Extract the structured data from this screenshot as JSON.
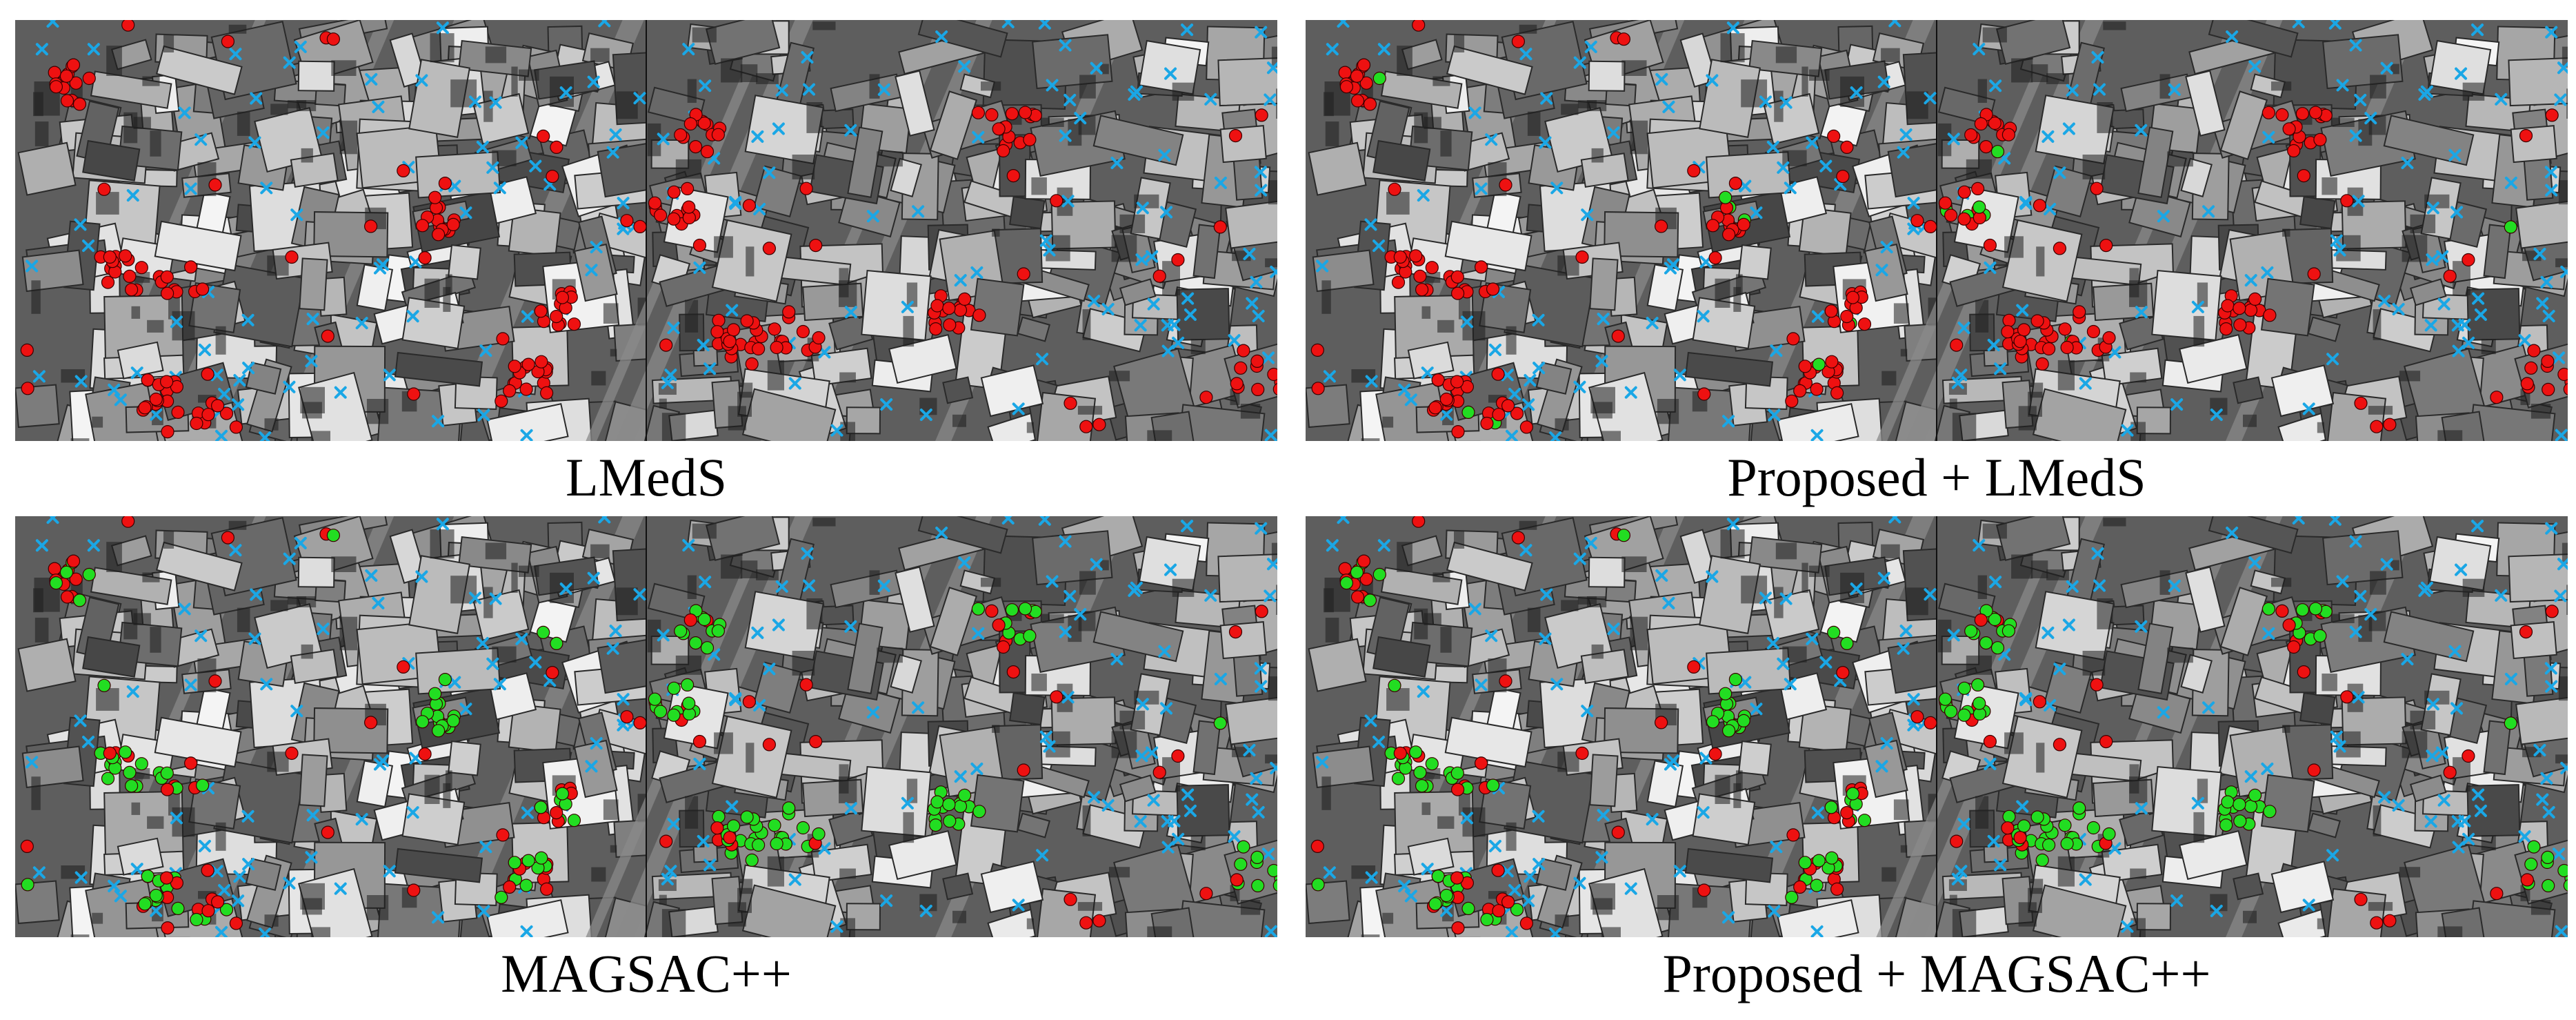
{
  "figure": {
    "panels": [
      {
        "caption": "LMedS",
        "inliers": "none"
      },
      {
        "caption": "Proposed + LMedS",
        "inliers": "few"
      },
      {
        "caption": "MAGSAC++",
        "inliers": "many"
      },
      {
        "caption": "Proposed + MAGSAC++",
        "inliers": "many"
      }
    ],
    "colors": {
      "inlier": "#22dd22",
      "outlier": "#ee1111",
      "keypoint_marker": "#1aa7e6",
      "image_tone": "grayscale"
    },
    "marker_shapes": {
      "inlier": "filled-circle",
      "outlier": "filled-circle",
      "keypoint": "x-cross"
    },
    "image_content": "aerial grayscale view of dense urban rooftops, shown as a left/right image pair"
  }
}
